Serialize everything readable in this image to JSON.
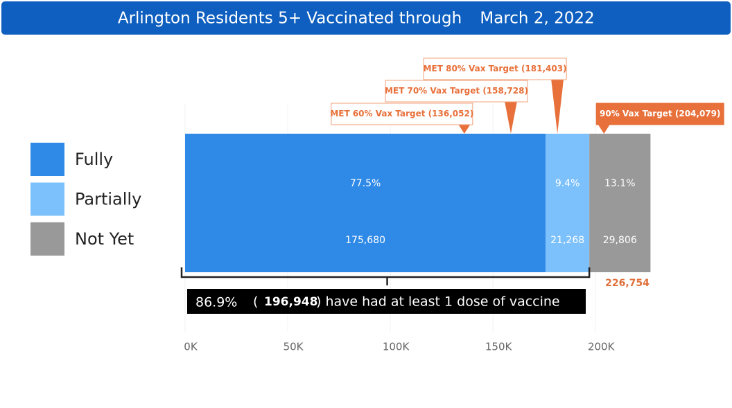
{
  "chart_data": {
    "type": "stacked-bar",
    "title": "Arlington Residents 5+ Vaccinated through",
    "date": "March 2, 2022",
    "series": [
      {
        "name": "Fully",
        "color": "#2f89e6",
        "values": [
          175680
        ],
        "value_labels": [
          "175,680"
        ],
        "share": [
          77.5
        ],
        "share_labels": [
          "77.5%"
        ]
      },
      {
        "name": "Partially",
        "color": "#7cc1fb",
        "values": [
          21268
        ],
        "value_labels": [
          "21,268"
        ],
        "share": [
          9.4
        ],
        "share_labels": [
          "9.4%"
        ]
      },
      {
        "name": "Not Yet",
        "color": "#999999",
        "values": [
          29806
        ],
        "value_labels": [
          "29,806"
        ],
        "share": [
          13.1
        ],
        "share_labels": [
          "13.1%"
        ]
      }
    ],
    "total": {
      "value": 226754,
      "label": "226,754"
    },
    "targets": [
      {
        "value": 136052,
        "label": "MET 60% Vax Target (136,052)",
        "met": true
      },
      {
        "value": 158728,
        "label": "MET 70% Vax Target (158,728)",
        "met": true
      },
      {
        "value": 181403,
        "label": "MET 80% Vax Target (181,403)",
        "met": true
      },
      {
        "value": 204079,
        "label": "90% Vax Target (204,079)",
        "met": false
      }
    ],
    "dose_summary": {
      "share": 86.9,
      "share_label": "86.9%",
      "open": "(",
      "count": 196948,
      "count_label": "196,948",
      "text": ") have had at least 1 dose of vaccine"
    },
    "xlim": [
      0,
      230000
    ],
    "xticks": [
      {
        "value": 0,
        "label": "0K"
      },
      {
        "value": 50000,
        "label": "50K"
      },
      {
        "value": 100000,
        "label": "100K"
      },
      {
        "value": 150000,
        "label": "150K"
      },
      {
        "value": 200000,
        "label": "200K"
      }
    ],
    "grid": true
  }
}
